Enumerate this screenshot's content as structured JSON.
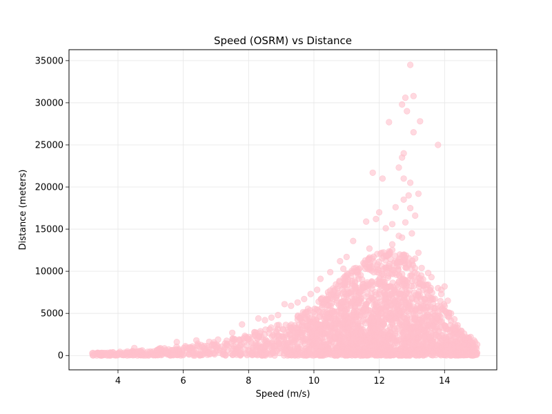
{
  "chart_data": {
    "type": "scatter",
    "title": "Speed (OSRM) vs Distance",
    "xlabel": "Speed (m/s)",
    "ylabel": "Distance (meters)",
    "xlim": [
      2.5,
      15.6
    ],
    "ylim": [
      -1700,
      36300
    ],
    "x_ticks": [
      4,
      6,
      8,
      10,
      12,
      14
    ],
    "y_ticks": [
      0,
      5000,
      10000,
      15000,
      20000,
      25000,
      30000,
      35000
    ],
    "grid": true,
    "marker_color": "#ffc0cb",
    "marker_opacity": 0.6,
    "envelope": [
      [
        3.2,
        300
      ],
      [
        3.6,
        400
      ],
      [
        4.0,
        450
      ],
      [
        4.5,
        550
      ],
      [
        5.0,
        700
      ],
      [
        5.5,
        1000
      ],
      [
        6.0,
        1200
      ],
      [
        6.5,
        1600
      ],
      [
        7.0,
        1900
      ],
      [
        7.5,
        2200
      ],
      [
        8.0,
        2600
      ],
      [
        8.5,
        3200
      ],
      [
        9.0,
        3800
      ],
      [
        9.5,
        4800
      ],
      [
        10.0,
        6000
      ],
      [
        10.5,
        7800
      ],
      [
        11.0,
        9800
      ],
      [
        11.5,
        11200
      ],
      [
        12.0,
        12300
      ],
      [
        12.5,
        12600
      ],
      [
        13.0,
        11500
      ],
      [
        13.5,
        8500
      ],
      [
        14.0,
        6000
      ],
      [
        14.5,
        3000
      ],
      [
        15.0,
        1500
      ]
    ],
    "outliers": [
      [
        12.95,
        34500
      ],
      [
        13.05,
        30800
      ],
      [
        12.8,
        30600
      ],
      [
        12.7,
        29800
      ],
      [
        12.85,
        29000
      ],
      [
        12.3,
        27700
      ],
      [
        13.25,
        27800
      ],
      [
        13.05,
        26500
      ],
      [
        13.8,
        25000
      ],
      [
        12.75,
        24000
      ],
      [
        12.7,
        23500
      ],
      [
        12.6,
        22300
      ],
      [
        11.8,
        21700
      ],
      [
        12.75,
        21000
      ],
      [
        12.1,
        21000
      ],
      [
        12.95,
        20500
      ],
      [
        13.2,
        19200
      ],
      [
        12.9,
        19000
      ],
      [
        12.75,
        18500
      ],
      [
        12.5,
        17600
      ],
      [
        12.95,
        17500
      ],
      [
        13.1,
        16600
      ],
      [
        12.0,
        17000
      ],
      [
        11.9,
        16200
      ],
      [
        11.6,
        15900
      ],
      [
        12.4,
        15600
      ],
      [
        12.8,
        15800
      ],
      [
        12.2,
        15100
      ],
      [
        13.0,
        14500
      ],
      [
        11.2,
        13600
      ],
      [
        12.6,
        14200
      ],
      [
        13.2,
        12200
      ],
      [
        13.1,
        11500
      ],
      [
        13.5,
        9800
      ],
      [
        11.0,
        11700
      ],
      [
        10.8,
        11200
      ],
      [
        10.5,
        9900
      ],
      [
        10.2,
        9100
      ],
      [
        10.1,
        7800
      ],
      [
        9.7,
        6700
      ],
      [
        9.5,
        6300
      ],
      [
        9.3,
        5900
      ],
      [
        9.1,
        6100
      ],
      [
        8.7,
        4500
      ],
      [
        8.5,
        4200
      ],
      [
        8.3,
        4400
      ],
      [
        7.8,
        3700
      ],
      [
        7.5,
        2700
      ],
      [
        5.8,
        1600
      ],
      [
        6.4,
        1800
      ],
      [
        4.5,
        900
      ],
      [
        14.2,
        5000
      ],
      [
        14.3,
        4300
      ],
      [
        14.1,
        6500
      ],
      [
        13.9,
        7800
      ],
      [
        14.0,
        8200
      ],
      [
        13.8,
        8000
      ],
      [
        13.9,
        7300
      ],
      [
        14.5,
        2900
      ],
      [
        14.6,
        2600
      ],
      [
        14.9,
        1800
      ],
      [
        15.0,
        1300
      ],
      [
        10.9,
        10300
      ],
      [
        12.7,
        14000
      ],
      [
        12.4,
        13200
      ],
      [
        11.7,
        12700
      ],
      [
        13.3,
        10400
      ],
      [
        13.6,
        9300
      ],
      [
        14.4,
        3600
      ],
      [
        14.8,
        2200
      ],
      [
        8.9,
        4800
      ],
      [
        9.9,
        7300
      ]
    ]
  }
}
